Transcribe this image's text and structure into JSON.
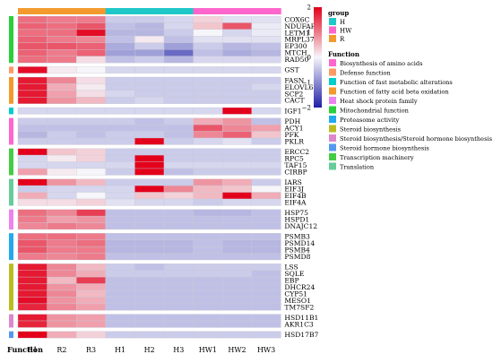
{
  "chart_data": {
    "type": "heatmap",
    "columns": [
      "R1",
      "R2",
      "R3",
      "H1",
      "H2",
      "H3",
      "HW1",
      "HW2",
      "HW3"
    ],
    "column_groups": [
      "R",
      "R",
      "R",
      "H",
      "H",
      "H",
      "HW",
      "HW",
      "HW"
    ],
    "row_label_header": "Function",
    "color_scale": {
      "min": -2,
      "mid": 0,
      "max": 2,
      "ticks": [
        2,
        1,
        0,
        -1,
        -2
      ],
      "low_color": "#1f1fa8",
      "mid_color": "#f6f6fa",
      "high_color": "#e3001b"
    },
    "group_legend": {
      "title": "group",
      "items": [
        {
          "label": "H",
          "color": "#1fc8c8"
        },
        {
          "label": "HW",
          "color": "#ff66cc"
        },
        {
          "label": "R",
          "color": "#f39a2e"
        }
      ]
    },
    "function_legend": {
      "title": "Function",
      "items": [
        {
          "label": "Biosynthesis of amino acids",
          "color": "#ff66cc"
        },
        {
          "label": "Defense function",
          "color": "#ff9966"
        },
        {
          "label": "Function of fast metabolic alterations",
          "color": "#00cccc"
        },
        {
          "label": "Function of fatty acid beta oxidation",
          "color": "#f39a2e"
        },
        {
          "label": "Heat shock protein family",
          "color": "#ee82ee"
        },
        {
          "label": "Mitochondrial function",
          "color": "#2bcf3a"
        },
        {
          "label": "Proteasome activity",
          "color": "#22aaee"
        },
        {
          "label": "Steroid biosynthesis",
          "color": "#bcbc22"
        },
        {
          "label": "Steroid biosynthesis/Steroid hormone biosynthesis",
          "color": "#dd88cc"
        },
        {
          "label": "Steroid hormone biosynthesis",
          "color": "#5599ee"
        },
        {
          "label": "Transcription machinery",
          "color": "#44cc44"
        },
        {
          "label": "Translation",
          "color": "#66cc99"
        }
      ]
    },
    "blocks": [
      {
        "function": "Mitochondrial function",
        "rows": [
          {
            "gene": "COX6C",
            "values": [
              1.1,
              1.0,
              1.0,
              -0.4,
              -0.4,
              -0.3,
              0.3,
              -0.2,
              -0.2
            ]
          },
          {
            "gene": "NDUFAF1",
            "values": [
              1.2,
              1.1,
              1.3,
              -0.5,
              -0.6,
              -0.3,
              0.4,
              1.3,
              -0.1
            ]
          },
          {
            "gene": "LETM1",
            "values": [
              1.1,
              1.1,
              1.9,
              -0.6,
              -0.6,
              -0.4,
              0.0,
              -0.3,
              -0.1
            ]
          },
          {
            "gene": "MRPL37",
            "values": [
              1.2,
              1.0,
              0.9,
              -0.5,
              0.1,
              -0.5,
              -0.2,
              -0.2,
              -0.2
            ]
          },
          {
            "gene": "EP300",
            "values": [
              1.3,
              1.3,
              1.2,
              -0.7,
              -0.4,
              -0.8,
              -0.4,
              -0.6,
              -0.5
            ]
          },
          {
            "gene": "MTCH",
            "values": [
              1.2,
              1.0,
              1.2,
              -0.8,
              -0.8,
              -1.3,
              -0.5,
              -0.7,
              -0.6
            ]
          },
          {
            "gene": "RAD50",
            "values": [
              1.1,
              1.0,
              0.2,
              -0.5,
              -0.4,
              -0.6,
              -0.3,
              -0.3,
              -0.3
            ]
          }
        ]
      },
      {
        "function": "Defense function",
        "rows": [
          {
            "gene": "GST",
            "values": [
              1.9,
              0.1,
              0.0,
              -0.3,
              -0.3,
              -0.3,
              -0.3,
              -0.3,
              -0.3
            ]
          }
        ]
      },
      {
        "function": "Function of fatty acid beta oxidation",
        "rows": [
          {
            "gene": "FASN",
            "values": [
              1.8,
              0.9,
              0.2,
              -0.4,
              -0.4,
              -0.4,
              -0.4,
              -0.4,
              -0.4
            ]
          },
          {
            "gene": "ELOVL6",
            "values": [
              1.8,
              0.6,
              0.1,
              -0.4,
              -0.4,
              -0.4,
              -0.4,
              -0.4,
              -0.3
            ]
          },
          {
            "gene": "SCP2",
            "values": [
              1.8,
              0.7,
              0.2,
              -0.3,
              -0.4,
              -0.4,
              -0.4,
              -0.4,
              -0.4
            ]
          },
          {
            "gene": "CACT",
            "values": [
              1.8,
              0.8,
              0.5,
              -0.4,
              -0.3,
              -0.4,
              -0.4,
              -0.4,
              -0.4
            ]
          }
        ]
      },
      {
        "function": "Function of fast metabolic alterations",
        "rows": [
          {
            "gene": "IGF1",
            "values": [
              -0.3,
              -0.3,
              -0.3,
              -0.3,
              -0.3,
              -0.3,
              -0.3,
              2.4,
              -0.3
            ]
          }
        ]
      },
      {
        "function": "Biosynthesis of amino acids",
        "rows": [
          {
            "gene": "PDH",
            "values": [
              -0.4,
              -0.4,
              -0.4,
              -0.4,
              -0.5,
              -0.4,
              0.6,
              0.8,
              -0.5
            ]
          },
          {
            "gene": "ACY1",
            "values": [
              -0.5,
              -0.5,
              -0.5,
              -0.5,
              -0.5,
              -0.5,
              1.3,
              0.9,
              0.7
            ]
          },
          {
            "gene": "PFK",
            "values": [
              -0.6,
              -0.4,
              -0.5,
              -0.4,
              -0.4,
              -0.5,
              0.9,
              1.2,
              0.4
            ]
          },
          {
            "gene": "PKLR",
            "values": [
              -0.4,
              -0.4,
              -0.4,
              -0.4,
              2.1,
              -0.4,
              -0.3,
              -0.2,
              -0.4
            ]
          }
        ]
      },
      {
        "function": "Transcription machinery",
        "rows": [
          {
            "gene": "ERCC2",
            "values": [
              2.2,
              0.4,
              0.3,
              -0.4,
              -0.4,
              -0.4,
              -0.4,
              -0.4,
              -0.4
            ]
          },
          {
            "gene": "RPC5",
            "values": [
              -0.3,
              0.1,
              0.3,
              -0.4,
              2.4,
              -0.4,
              -0.4,
              -0.4,
              -0.4
            ]
          },
          {
            "gene": "TAF15",
            "values": [
              -0.3,
              -0.3,
              -0.3,
              -0.3,
              2.4,
              -0.3,
              -0.3,
              -0.3,
              -0.3
            ]
          },
          {
            "gene": "CIRBP",
            "values": [
              0.7,
              0.1,
              0.0,
              -0.4,
              2.2,
              -0.5,
              -0.4,
              -0.4,
              -0.4
            ]
          }
        ]
      },
      {
        "function": "Translation",
        "rows": [
          {
            "gene": "IARS",
            "values": [
              2.2,
              0.8,
              0.5,
              -0.4,
              -0.4,
              -0.4,
              0.8,
              0.6,
              -0.4
            ]
          },
          {
            "gene": "EIF3J",
            "values": [
              -0.4,
              -0.3,
              -0.3,
              -0.3,
              2.3,
              0.9,
              0.5,
              0.4,
              0.0
            ]
          },
          {
            "gene": "EIF4B",
            "values": [
              0.6,
              -0.3,
              0.0,
              -0.3,
              0.4,
              0.3,
              0.5,
              2.4,
              0.6
            ]
          },
          {
            "gene": "EIF4A",
            "values": [
              0.2,
              0.2,
              0.3,
              -0.2,
              -0.3,
              -0.3,
              -0.4,
              -0.3,
              -0.3
            ]
          }
        ]
      },
      {
        "function": "Heat shock protein family",
        "rows": [
          {
            "gene": "HSP75",
            "values": [
              1.1,
              0.9,
              1.5,
              -0.5,
              -0.5,
              -0.5,
              -0.6,
              -0.6,
              -0.5
            ]
          },
          {
            "gene": "HSPD1",
            "values": [
              1.0,
              0.7,
              0.8,
              -0.5,
              -0.5,
              -0.5,
              -0.5,
              -0.5,
              -0.5
            ]
          },
          {
            "gene": "DNAJC12",
            "values": [
              0.9,
              1.0,
              0.9,
              -0.5,
              -0.5,
              -0.5,
              -0.5,
              -0.5,
              -0.5
            ]
          }
        ]
      },
      {
        "function": "Proteasome activity",
        "rows": [
          {
            "gene": "PSMB3",
            "values": [
              1.1,
              1.1,
              1.0,
              -0.5,
              -0.5,
              -0.5,
              -0.5,
              -0.5,
              -0.5
            ]
          },
          {
            "gene": "PSMD14",
            "values": [
              1.3,
              1.0,
              1.1,
              -0.6,
              -0.6,
              -0.6,
              -0.5,
              -0.6,
              -0.6
            ]
          },
          {
            "gene": "PSMB4",
            "values": [
              1.3,
              1.0,
              1.0,
              -0.6,
              -0.6,
              -0.6,
              -0.5,
              -0.6,
              -0.6
            ]
          },
          {
            "gene": "PSMD8",
            "values": [
              1.0,
              0.9,
              1.0,
              -0.5,
              -0.5,
              -0.5,
              -0.5,
              -0.5,
              -0.5
            ]
          }
        ]
      },
      {
        "function": "Steroid biosynthesis",
        "rows": [
          {
            "gene": "LSS",
            "values": [
              1.8,
              0.9,
              0.5,
              -0.4,
              -0.5,
              -0.4,
              -0.4,
              -0.4,
              -0.4
            ]
          },
          {
            "gene": "SQLE",
            "values": [
              1.8,
              0.9,
              0.6,
              -0.4,
              -0.4,
              -0.4,
              -0.4,
              -0.4,
              -0.5
            ]
          },
          {
            "gene": "EBP",
            "values": [
              1.8,
              0.5,
              1.5,
              -0.5,
              -0.5,
              -0.5,
              -0.5,
              -0.5,
              -0.5
            ]
          },
          {
            "gene": "DHCR24",
            "values": [
              1.8,
              0.8,
              0.6,
              -0.5,
              -0.5,
              -0.5,
              -0.5,
              -0.5,
              -0.5
            ]
          },
          {
            "gene": "CYP51",
            "values": [
              1.8,
              0.9,
              0.5,
              -0.5,
              -0.5,
              -0.5,
              -0.5,
              -0.5,
              -0.5
            ]
          },
          {
            "gene": "MESO1",
            "values": [
              1.9,
              0.8,
              0.6,
              -0.5,
              -0.5,
              -0.5,
              -0.5,
              -0.5,
              -0.5
            ]
          },
          {
            "gene": "TM7SF2",
            "values": [
              1.7,
              0.9,
              0.7,
              -0.5,
              -0.5,
              -0.5,
              -0.5,
              -0.5,
              -0.5
            ]
          }
        ]
      },
      {
        "function": "Steroid biosynthesis/Steroid hormone biosynthesis",
        "rows": [
          {
            "gene": "HSD11B1",
            "values": [
              1.8,
              0.8,
              0.7,
              -0.5,
              -0.5,
              -0.5,
              -0.5,
              -0.5,
              -0.5
            ]
          },
          {
            "gene": "AKR1C3",
            "values": [
              1.7,
              0.8,
              0.7,
              -0.5,
              -0.5,
              -0.5,
              -0.5,
              -0.5,
              -0.5
            ]
          }
        ]
      },
      {
        "function": "Steroid hormone biosynthesis",
        "rows": [
          {
            "gene": "HSD17B7",
            "values": [
              2.0,
              0.6,
              0.3,
              -0.4,
              -0.4,
              -0.4,
              -0.4,
              -0.4,
              -0.4
            ]
          }
        ]
      }
    ]
  }
}
